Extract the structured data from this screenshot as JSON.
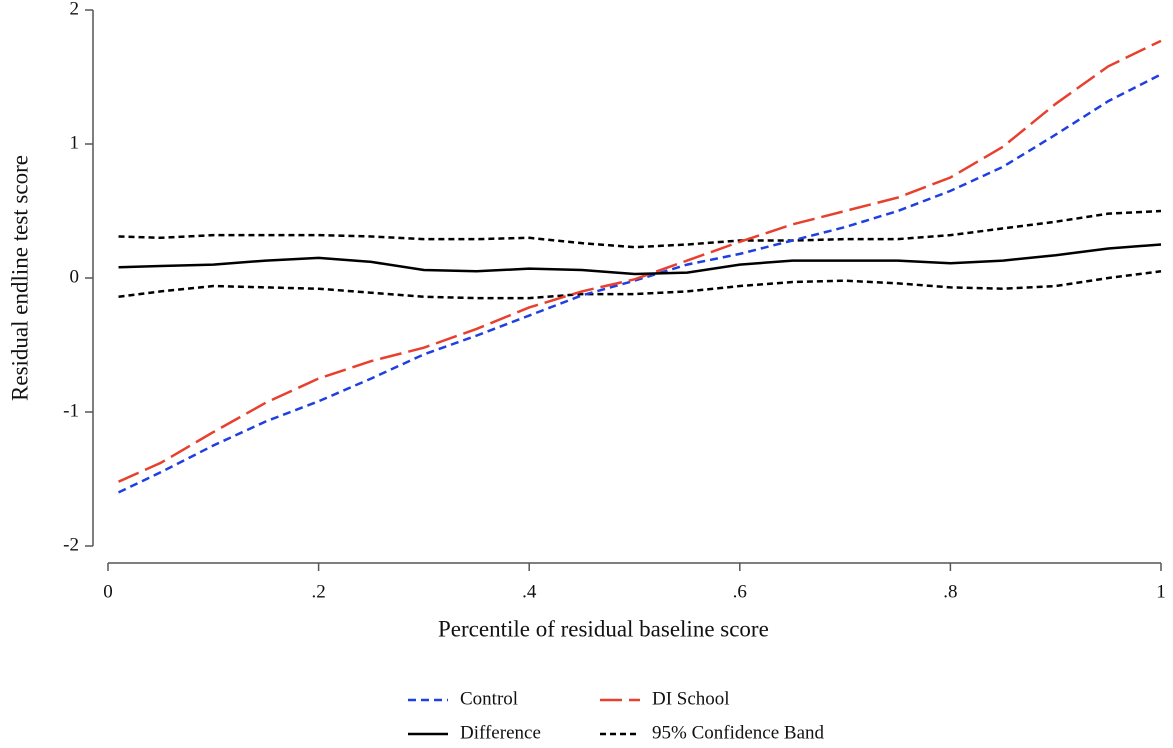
{
  "chart_data": {
    "type": "line",
    "x_label": "Percentile of residual baseline score",
    "y_label": "Residual endline test score",
    "x": [
      0.01,
      0.05,
      0.1,
      0.15,
      0.2,
      0.25,
      0.3,
      0.35,
      0.4,
      0.45,
      0.5,
      0.55,
      0.6,
      0.65,
      0.7,
      0.75,
      0.8,
      0.85,
      0.9,
      0.95,
      1.0
    ],
    "series": [
      {
        "name": "Control",
        "color": "#1f3fe0",
        "dash": "8 5",
        "values": [
          -1.6,
          -1.45,
          -1.25,
          -1.07,
          -0.92,
          -0.75,
          -0.57,
          -0.43,
          -0.28,
          -0.13,
          -0.02,
          0.1,
          0.18,
          0.28,
          0.38,
          0.5,
          0.65,
          0.83,
          1.07,
          1.32,
          1.52
        ]
      },
      {
        "name": "DI School",
        "color": "#e8402e",
        "dash": "22 7",
        "values": [
          -1.52,
          -1.38,
          -1.15,
          -0.93,
          -0.75,
          -0.62,
          -0.52,
          -0.38,
          -0.22,
          -0.1,
          -0.01,
          0.13,
          0.27,
          0.4,
          0.5,
          0.6,
          0.75,
          0.98,
          1.3,
          1.58,
          1.77
        ]
      },
      {
        "name": "Difference",
        "color": "#000000",
        "dash": "none",
        "values": [
          0.08,
          0.09,
          0.1,
          0.13,
          0.15,
          0.12,
          0.06,
          0.05,
          0.07,
          0.06,
          0.03,
          0.04,
          0.1,
          0.13,
          0.13,
          0.13,
          0.11,
          0.13,
          0.17,
          0.22,
          0.25
        ]
      }
    ],
    "band": {
      "name": "95% Confidence Band",
      "color": "#000000",
      "dash": "6 4",
      "upper": [
        0.31,
        0.3,
        0.32,
        0.32,
        0.32,
        0.31,
        0.29,
        0.29,
        0.3,
        0.26,
        0.23,
        0.25,
        0.28,
        0.28,
        0.29,
        0.29,
        0.32,
        0.37,
        0.42,
        0.48,
        0.5
      ],
      "lower": [
        -0.14,
        -0.1,
        -0.06,
        -0.07,
        -0.08,
        -0.11,
        -0.14,
        -0.15,
        -0.15,
        -0.12,
        -0.12,
        -0.1,
        -0.06,
        -0.03,
        -0.02,
        -0.04,
        -0.07,
        -0.08,
        -0.06,
        0.0,
        0.05
      ]
    },
    "xlim": [
      0,
      1
    ],
    "xticks": [
      0,
      {
        "value": 0.2,
        "label": ".2"
      },
      {
        "value": 0.4,
        "label": ".4"
      },
      {
        "value": 0.6,
        "label": ".6"
      },
      {
        "value": 0.8,
        "label": ".8"
      },
      1
    ],
    "ylim": [
      -2,
      2
    ],
    "yticks": [
      -2,
      -1,
      0,
      1,
      2
    ],
    "legend": "bottom"
  }
}
